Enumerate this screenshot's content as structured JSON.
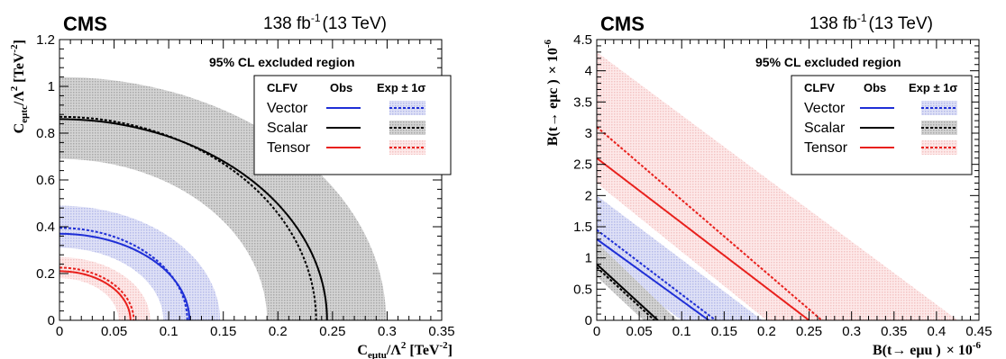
{
  "colors": {
    "vector": "#1f2fd6",
    "scalar": "#000000",
    "tensor": "#e8201c",
    "vector_band": "#c9cdf0",
    "scalar_band": "#c8c8c8",
    "tensor_band": "#f8d2d2"
  },
  "chart_data": [
    {
      "type": "line",
      "experiment": "CMS",
      "lumi": "138 fb",
      "lumi_sup": "-1",
      "energy": "(13 TeV)",
      "title": "95% CL excluded region",
      "xlabel": "C_eutu/Λ² [TeV⁻²]",
      "xlabel_main": "C",
      "xlabel_sub": "eμtu",
      "xlabel_rest": "/Λ",
      "xlabel_unit": "[TeV",
      "ylabel_main": "C",
      "ylabel_sub": "eμtc",
      "ylabel_rest": "/Λ",
      "ylabel_unit": "[TeV",
      "xlim": [
        0,
        0.35
      ],
      "ylim": [
        0,
        1.2
      ],
      "xticks": [
        "0",
        "0.05",
        "0.1",
        "0.15",
        "0.2",
        "0.25",
        "0.3",
        "0.35"
      ],
      "yticks": [
        "0",
        "0.2",
        "0.4",
        "0.6",
        "0.8",
        "1",
        "1.2"
      ],
      "legend": {
        "header": [
          "CLFV",
          "Obs",
          "Exp ± 1σ"
        ],
        "placement": "top-right"
      },
      "series": [
        {
          "name": "Vector",
          "shape": "ellipse",
          "obs": [
            0.119,
            0.37
          ],
          "exp": [
            0.117,
            0.395
          ],
          "band_lo": [
            0.095,
            0.31
          ],
          "band_hi": [
            0.147,
            0.49
          ]
        },
        {
          "name": "Scalar",
          "shape": "ellipse",
          "obs": [
            0.245,
            0.86
          ],
          "exp": [
            0.235,
            0.87
          ],
          "band_lo": [
            0.19,
            0.69
          ],
          "band_hi": [
            0.299,
            1.04
          ]
        },
        {
          "name": "Tensor",
          "shape": "ellipse",
          "obs": [
            0.065,
            0.21
          ],
          "exp": [
            0.068,
            0.225
          ],
          "band_lo": [
            0.054,
            0.18
          ],
          "band_hi": [
            0.083,
            0.27
          ]
        }
      ]
    },
    {
      "type": "line",
      "experiment": "CMS",
      "lumi": "138 fb",
      "lumi_sup": "-1",
      "energy": "(13 TeV)",
      "title": "95% CL excluded region",
      "xlabel_main": "B(t→ eμu )",
      "xlabel_unit": "× 10",
      "xlabel_exp": "-6",
      "ylabel_main": "B(t→ eμc )",
      "ylabel_unit": "× 10",
      "ylabel_exp": "-6",
      "xlim": [
        0,
        0.45
      ],
      "ylim": [
        0,
        4.5
      ],
      "xticks": [
        "0",
        "0.05",
        "0.1",
        "0.15",
        "0.2",
        "0.25",
        "0.3",
        "0.35",
        "0.4",
        "0.45"
      ],
      "yticks": [
        "0",
        "0.5",
        "1",
        "1.5",
        "2",
        "2.5",
        "3",
        "3.5",
        "4",
        "4.5"
      ],
      "legend": {
        "header": [
          "CLFV",
          "Obs",
          "Exp ± 1σ"
        ],
        "placement": "top-right"
      },
      "series": [
        {
          "name": "Vector",
          "shape": "linear",
          "obs": [
            0.132,
            1.3
          ],
          "exp": [
            0.14,
            1.45
          ],
          "band_lo": [
            0.1,
            1.0
          ],
          "band_hi": [
            0.195,
            2.0
          ]
        },
        {
          "name": "Scalar",
          "shape": "linear",
          "obs": [
            0.072,
            0.9
          ],
          "exp": [
            0.068,
            0.85
          ],
          "band_lo": [
            0.055,
            0.7
          ],
          "band_hi": [
            0.095,
            1.25
          ]
        },
        {
          "name": "Tensor",
          "shape": "linear",
          "obs": [
            0.25,
            2.6
          ],
          "exp": [
            0.265,
            3.1
          ],
          "band_lo": [
            0.2,
            2.2
          ],
          "band_hi": [
            0.425,
            4.3
          ]
        }
      ]
    }
  ]
}
